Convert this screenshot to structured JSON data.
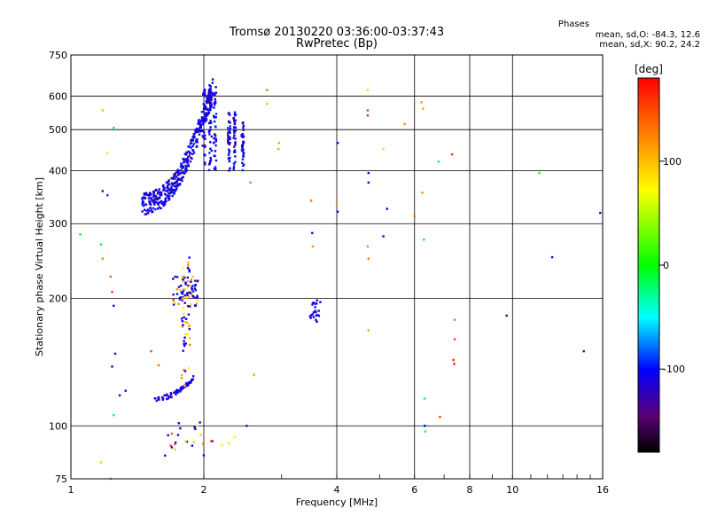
{
  "title": {
    "line1": "Tromsø 20130220 03:36:00-03:37:43",
    "line2": "RwPretec (Bp)"
  },
  "stats": {
    "header": "Phases",
    "o_line": "mean, sd,O: -84.3, 12.6",
    "x_line": "mean, sd,X:  90.2, 24.2"
  },
  "colorbar": {
    "label": "[deg]",
    "ticks": [
      100,
      0,
      -100
    ],
    "range": [
      -180,
      180
    ]
  },
  "chart_data": {
    "type": "scatter",
    "xlabel": "Frequency [MHz]",
    "ylabel": "Stationary phase Virtual Height [km]",
    "xscale": "log",
    "yscale": "log",
    "xlim": [
      1,
      16
    ],
    "ylim": [
      75,
      750
    ],
    "xticks": [
      1,
      2,
      4,
      6,
      8,
      10,
      16
    ],
    "yticks": [
      75,
      100,
      200,
      300,
      400,
      500,
      600,
      750
    ],
    "grid": true,
    "color_label": "[deg]",
    "clusters": [
      {
        "name": "F-region trace",
        "x_range": [
          1.45,
          2.1
        ],
        "y_range": [
          330,
          640
        ],
        "phase": -110
      },
      {
        "name": "F-region vertical columns",
        "x_range": [
          2.1,
          2.55
        ],
        "y_range": [
          400,
          640
        ],
        "phase": -105
      },
      {
        "name": "E-region trace",
        "x_range": [
          1.55,
          1.9
        ],
        "y_range": [
          115,
          130
        ],
        "phase": -110
      },
      {
        "name": "Es echoes",
        "x_range": [
          1.7,
          1.95
        ],
        "y_range": [
          185,
          225
        ],
        "phase": -110
      },
      {
        "name": "Cluster near 3.6 MHz",
        "x_range": [
          3.5,
          3.7
        ],
        "y_range": [
          175,
          195
        ],
        "phase": -110
      }
    ],
    "points": [
      {
        "x": 1.18,
        "y": 555,
        "phase": 100
      },
      {
        "x": 1.25,
        "y": 505,
        "phase": -10
      },
      {
        "x": 1.21,
        "y": 440,
        "phase": 60
      },
      {
        "x": 1.18,
        "y": 358,
        "phase": -130
      },
      {
        "x": 1.21,
        "y": 350,
        "phase": -90
      },
      {
        "x": 1.05,
        "y": 283,
        "phase": 0
      },
      {
        "x": 1.18,
        "y": 248,
        "phase": 120
      },
      {
        "x": 1.17,
        "y": 268,
        "phase": -10
      },
      {
        "x": 1.23,
        "y": 225,
        "phase": 140
      },
      {
        "x": 1.24,
        "y": 207,
        "phase": 150
      },
      {
        "x": 1.25,
        "y": 192,
        "phase": -110
      },
      {
        "x": 1.26,
        "y": 148,
        "phase": -110
      },
      {
        "x": 1.24,
        "y": 138,
        "phase": -120
      },
      {
        "x": 1.29,
        "y": 118,
        "phase": -120
      },
      {
        "x": 1.33,
        "y": 121,
        "phase": -110
      },
      {
        "x": 1.25,
        "y": 106,
        "phase": -20
      },
      {
        "x": 1.17,
        "y": 82,
        "phase": 50
      },
      {
        "x": 1.23,
        "y": 75,
        "phase": 120
      },
      {
        "x": 1.52,
        "y": 150,
        "phase": 150
      },
      {
        "x": 1.58,
        "y": 139,
        "phase": 130
      },
      {
        "x": 1.66,
        "y": 95,
        "phase": -110
      },
      {
        "x": 1.72,
        "y": 88,
        "phase": 40
      },
      {
        "x": 1.82,
        "y": 92,
        "phase": 50
      },
      {
        "x": 2.08,
        "y": 92,
        "phase": 160
      },
      {
        "x": 2.2,
        "y": 90,
        "phase": 70
      },
      {
        "x": 2.28,
        "y": 91,
        "phase": 60
      },
      {
        "x": 2.35,
        "y": 94,
        "phase": 70
      },
      {
        "x": 2.5,
        "y": 100,
        "phase": -110
      },
      {
        "x": 2.6,
        "y": 132,
        "phase": 110
      },
      {
        "x": 2.78,
        "y": 620,
        "phase": 130
      },
      {
        "x": 2.78,
        "y": 575,
        "phase": 100
      },
      {
        "x": 2.96,
        "y": 465,
        "phase": 110
      },
      {
        "x": 2.95,
        "y": 450,
        "phase": 110
      },
      {
        "x": 2.55,
        "y": 375,
        "phase": 130
      },
      {
        "x": 3.5,
        "y": 340,
        "phase": 130
      },
      {
        "x": 3.52,
        "y": 285,
        "phase": -110
      },
      {
        "x": 3.53,
        "y": 265,
        "phase": 120
      },
      {
        "x": 4.02,
        "y": 465,
        "phase": -110
      },
      {
        "x": 4.0,
        "y": 337,
        "phase": 120
      },
      {
        "x": 4.02,
        "y": 320,
        "phase": -110
      },
      {
        "x": 4.7,
        "y": 620,
        "phase": 50
      },
      {
        "x": 4.7,
        "y": 555,
        "phase": 150
      },
      {
        "x": 4.7,
        "y": 540,
        "phase": 160
      },
      {
        "x": 4.72,
        "y": 395,
        "phase": -110
      },
      {
        "x": 4.72,
        "y": 375,
        "phase": -110
      },
      {
        "x": 4.7,
        "y": 265,
        "phase": 120
      },
      {
        "x": 4.72,
        "y": 248,
        "phase": 130
      },
      {
        "x": 4.72,
        "y": 168,
        "phase": 110
      },
      {
        "x": 5.1,
        "y": 450,
        "phase": 50
      },
      {
        "x": 5.2,
        "y": 325,
        "phase": -110
      },
      {
        "x": 5.1,
        "y": 280,
        "phase": -110
      },
      {
        "x": 5.7,
        "y": 515,
        "phase": 120
      },
      {
        "x": 6.0,
        "y": 312,
        "phase": 130
      },
      {
        "x": 6.22,
        "y": 580,
        "phase": 120
      },
      {
        "x": 6.27,
        "y": 560,
        "phase": 110
      },
      {
        "x": 6.25,
        "y": 355,
        "phase": 120
      },
      {
        "x": 6.3,
        "y": 275,
        "phase": -10
      },
      {
        "x": 6.32,
        "y": 116,
        "phase": -20
      },
      {
        "x": 6.33,
        "y": 100,
        "phase": -100
      },
      {
        "x": 6.35,
        "y": 97,
        "phase": -20
      },
      {
        "x": 6.8,
        "y": 420,
        "phase": -10
      },
      {
        "x": 6.85,
        "y": 105,
        "phase": 150
      },
      {
        "x": 7.3,
        "y": 437,
        "phase": 160
      },
      {
        "x": 7.4,
        "y": 178,
        "phase": 130
      },
      {
        "x": 7.4,
        "y": 160,
        "phase": 150
      },
      {
        "x": 7.35,
        "y": 143,
        "phase": 160
      },
      {
        "x": 7.38,
        "y": 140,
        "phase": 170
      },
      {
        "x": 9.7,
        "y": 182,
        "phase": -120
      },
      {
        "x": 11.5,
        "y": 395,
        "phase": -10
      },
      {
        "x": 12.3,
        "y": 250,
        "phase": -110
      },
      {
        "x": 14.5,
        "y": 150,
        "phase": -130
      },
      {
        "x": 15.8,
        "y": 318,
        "phase": -110
      }
    ]
  }
}
